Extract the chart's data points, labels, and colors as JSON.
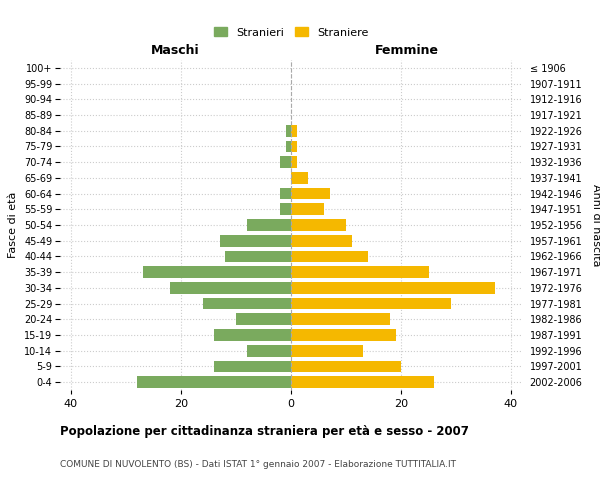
{
  "age_groups": [
    "0-4",
    "5-9",
    "10-14",
    "15-19",
    "20-24",
    "25-29",
    "30-34",
    "35-39",
    "40-44",
    "45-49",
    "50-54",
    "55-59",
    "60-64",
    "65-69",
    "70-74",
    "75-79",
    "80-84",
    "85-89",
    "90-94",
    "95-99",
    "100+"
  ],
  "birth_years": [
    "2002-2006",
    "1997-2001",
    "1992-1996",
    "1987-1991",
    "1982-1986",
    "1977-1981",
    "1972-1976",
    "1967-1971",
    "1962-1966",
    "1957-1961",
    "1952-1956",
    "1947-1951",
    "1942-1946",
    "1937-1941",
    "1932-1936",
    "1927-1931",
    "1922-1926",
    "1917-1921",
    "1912-1916",
    "1907-1911",
    "≤ 1906"
  ],
  "maschi": [
    28,
    14,
    8,
    14,
    10,
    16,
    22,
    27,
    12,
    13,
    8,
    2,
    2,
    0,
    2,
    1,
    1,
    0,
    0,
    0,
    0
  ],
  "femmine": [
    26,
    20,
    13,
    19,
    18,
    29,
    37,
    25,
    14,
    11,
    10,
    6,
    7,
    3,
    1,
    1,
    1,
    0,
    0,
    0,
    0
  ],
  "maschi_color": "#7aaa5e",
  "femmine_color": "#f5b800",
  "title": "Popolazione per cittadinanza straniera per età e sesso - 2007",
  "subtitle": "COMUNE DI NUVOLENTO (BS) - Dati ISTAT 1° gennaio 2007 - Elaborazione TUTTITALIA.IT",
  "xlabel_left": "Maschi",
  "xlabel_right": "Femmine",
  "ylabel_left": "Fasce di età",
  "ylabel_right": "Anni di nascita",
  "legend_stranieri": "Stranieri",
  "legend_straniere": "Straniere",
  "xlim": 42,
  "background_color": "#ffffff",
  "grid_color": "#cccccc"
}
